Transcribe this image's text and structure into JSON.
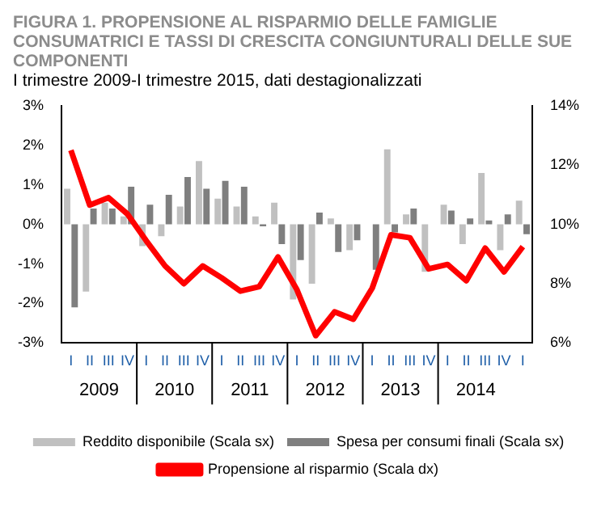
{
  "chart_data": {
    "type": "bar",
    "title": "FIGURA 1. PROPENSIONE AL RISPARMIO DELLE FAMIGLIE CONSUMATRICI E TASSI DI CRESCITA CONGIUNTURALI DELLE SUE COMPONENTI",
    "subtitle": "I trimestre 2009-I trimestre 2015, dati destagionalizzati",
    "categories": [
      "I",
      "II",
      "III",
      "IV",
      "I",
      "II",
      "III",
      "IV",
      "I",
      "II",
      "III",
      "IV",
      "I",
      "II",
      "III",
      "IV",
      "I",
      "II",
      "III",
      "IV",
      "I",
      "II",
      "III",
      "IV",
      "I"
    ],
    "series": [
      {
        "name": "Reddito disponibile (Scala sx)",
        "axis": "y",
        "color": "#c0c0c0",
        "values": [
          0.9,
          -1.7,
          0.55,
          0.2,
          -0.55,
          -0.3,
          0.45,
          1.6,
          0.65,
          0.45,
          0.2,
          0.55,
          -1.9,
          -1.5,
          0.15,
          -0.65,
          null,
          1.9,
          0.25,
          -1.2,
          0.5,
          -0.5,
          1.3,
          -0.65,
          0.6
        ]
      },
      {
        "name": "Spesa per consumi finali (Scala sx)",
        "axis": "y",
        "color": "#7f7f7f",
        "values": [
          -2.1,
          0.4,
          0.4,
          0.95,
          0.5,
          0.75,
          1.2,
          0.9,
          1.1,
          0.95,
          -0.05,
          -0.5,
          -0.9,
          0.3,
          -0.7,
          -0.4,
          -1.15,
          -0.2,
          0.4,
          0,
          0.35,
          0.15,
          0.1,
          0.25,
          -0.25
        ]
      },
      {
        "name": "Propensione al risparmio (Scala dx)",
        "type": "line",
        "axis": "y2",
        "color": "#ff0000",
        "values": [
          12.5,
          10.65,
          10.9,
          10.35,
          9.45,
          8.6,
          8.0,
          8.6,
          8.2,
          7.75,
          7.9,
          8.9,
          7.8,
          6.25,
          7.05,
          6.8,
          7.85,
          9.65,
          9.55,
          8.5,
          8.65,
          8.1,
          9.2,
          8.4,
          9.25
        ]
      }
    ],
    "ylim": [
      -3,
      3
    ],
    "yticks": [
      {
        "value": -3,
        "label": "-3%"
      },
      {
        "value": -2,
        "label": "-2%"
      },
      {
        "value": -1,
        "label": "-1%"
      },
      {
        "value": 0,
        "label": "0%"
      },
      {
        "value": 1,
        "label": "1%"
      },
      {
        "value": 2,
        "label": "2%"
      },
      {
        "value": 3,
        "label": "3%"
      }
    ],
    "y2lim": [
      6,
      14
    ],
    "y2ticks": [
      {
        "value": 6,
        "label": "6%"
      },
      {
        "value": 8,
        "label": "8%"
      },
      {
        "value": 10,
        "label": "10%"
      },
      {
        "value": 12,
        "label": "12%"
      },
      {
        "value": 14,
        "label": "14%"
      }
    ],
    "annotations": [
      "2009",
      "2010",
      "2011",
      "2012",
      "2013",
      "2014"
    ],
    "grid": false,
    "legend": "bottom",
    "marker": "none"
  }
}
